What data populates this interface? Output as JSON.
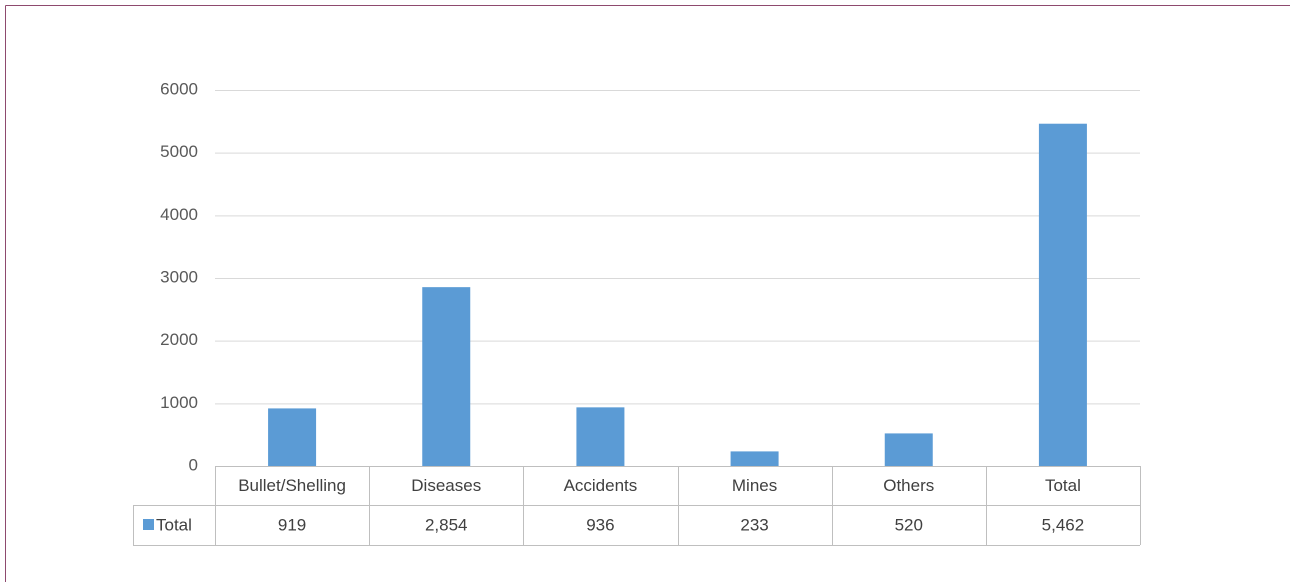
{
  "chart_data": {
    "type": "bar",
    "categories": [
      "Bullet/Shelling",
      "Diseases",
      "Accidents",
      "Mines",
      "Others",
      "Total"
    ],
    "series": [
      {
        "name": "Total",
        "color": "#5b9bd5",
        "values": [
          919,
          2854,
          936,
          233,
          520,
          5462
        ],
        "value_labels": [
          "919",
          "2,854",
          "936",
          "233",
          "520",
          "5,462"
        ]
      }
    ],
    "ylim": [
      0,
      6000
    ],
    "yticks": [
      0,
      1000,
      2000,
      3000,
      4000,
      5000,
      6000
    ],
    "grid": true
  }
}
